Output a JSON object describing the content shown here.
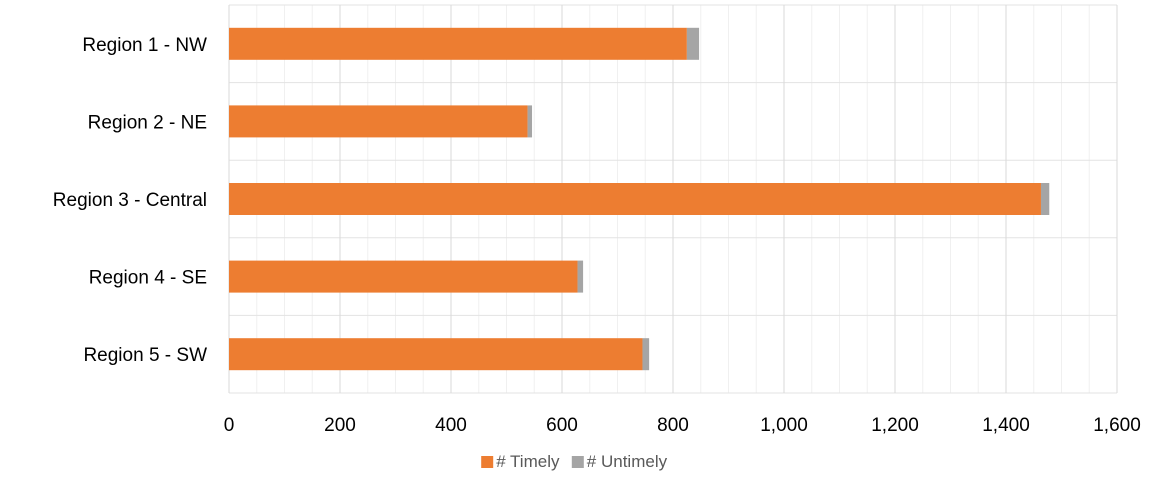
{
  "chart_data": {
    "type": "bar",
    "orientation": "horizontal",
    "stacked": true,
    "title": "",
    "xlabel": "",
    "ylabel": "",
    "categories": [
      "Region 1 - NW",
      "Region 2 - NE",
      "Region 3 - Central",
      "Region 4 - SE",
      "Region 5 - SW"
    ],
    "series": [
      {
        "name": "# Timely",
        "color": "#ED7D31",
        "values": [
          825,
          538,
          1463,
          628,
          745
        ]
      },
      {
        "name": "# Untimely",
        "color": "#A5A5A5",
        "values": [
          22,
          8,
          15,
          10,
          12
        ]
      }
    ],
    "xlim": [
      0,
      1600
    ],
    "xticks": [
      0,
      200,
      400,
      600,
      800,
      1000,
      1200,
      1400,
      1600
    ],
    "xtick_labels": [
      "0",
      "200",
      "400",
      "600",
      "800",
      "1,000",
      "1,200",
      "1,400",
      "1,600"
    ],
    "grid": "major and minor vertical",
    "legend_position": "bottom"
  }
}
